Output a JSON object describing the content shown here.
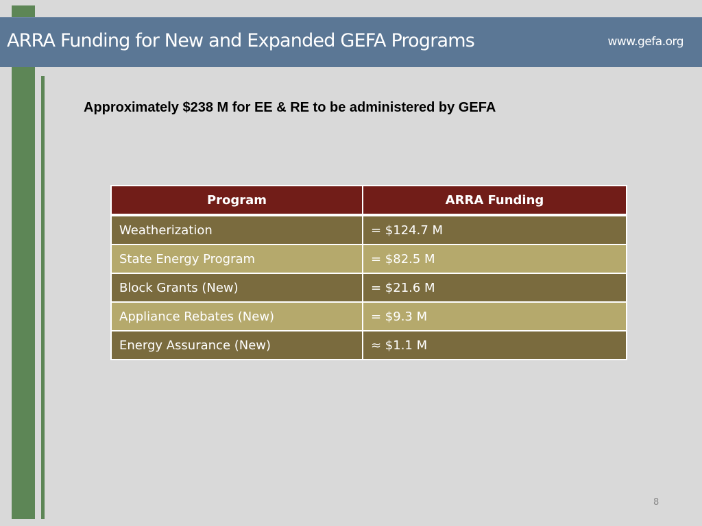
{
  "header": {
    "title": "ARRA Funding for New and Expanded GEFA Programs",
    "url": "www.gefa.org"
  },
  "subtitle": "Approximately $238 M for EE & RE to be administered by GEFA",
  "table": {
    "headers": [
      "Program",
      "ARRA Funding"
    ],
    "rows": [
      {
        "program": "Weatherization",
        "funding": "= $124.7 M"
      },
      {
        "program": "State Energy Program",
        "funding": "= $82.5 M"
      },
      {
        "program": "Block Grants (New)",
        "funding": "= $21.6 M"
      },
      {
        "program": "Appliance Rebates (New)",
        "funding": "= $9.3 M"
      },
      {
        "program": "Energy Assurance (New)",
        "funding": "≈ $1.1 M"
      }
    ]
  },
  "colors": {
    "header_band": "#5b7795",
    "accent_green": "#5d8656",
    "table_header": "#711d18",
    "row_dark": "#7a6b3e",
    "row_light": "#b5a96c"
  },
  "page_number": "8"
}
